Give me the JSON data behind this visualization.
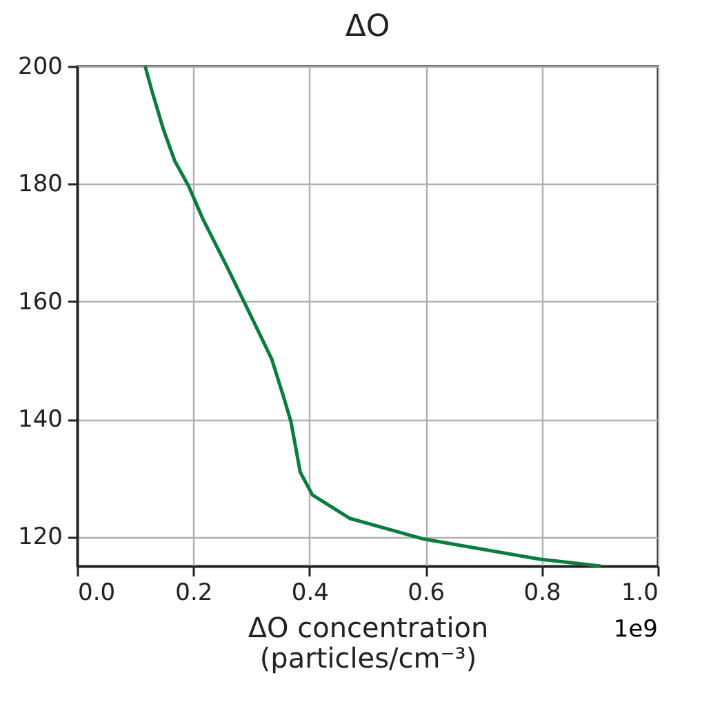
{
  "chart_data": {
    "type": "line",
    "title": "ΔO",
    "xlabel": "ΔO concentration\n(particles/cm⁻³)",
    "annotations": [
      "1e9"
    ],
    "x": [
      0.117,
      0.129,
      0.148,
      0.168,
      0.192,
      0.216,
      0.256,
      0.295,
      0.335,
      0.355,
      0.368,
      0.384,
      0.405,
      0.47,
      0.597,
      0.795,
      0.902
    ],
    "series": [
      {
        "color": "#0a7d3e",
        "values": [
          200,
          195.7,
          189.4,
          183.9,
          179.6,
          174.1,
          166.3,
          158.4,
          150.2,
          143.9,
          139.6,
          131.0,
          127.1,
          123.1,
          119.6,
          116.2,
          115
        ]
      }
    ],
    "xlim": [
      0,
      1
    ],
    "xticks": [
      {
        "value": 0,
        "label": "0.0"
      },
      0.2,
      0.4,
      0.6,
      0.8,
      {
        "value": 1,
        "label": "1.0"
      }
    ],
    "ylim": [
      115,
      200
    ],
    "yticks": [
      120,
      140,
      160,
      180,
      200
    ],
    "grid": true,
    "line_style": "solid"
  }
}
